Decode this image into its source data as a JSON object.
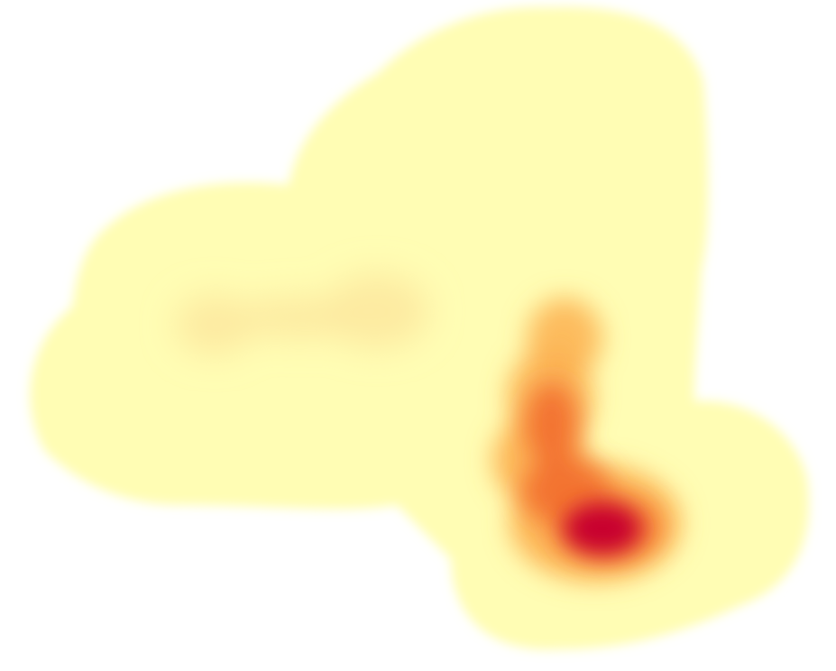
{
  "map": {
    "type": "density heatmap",
    "color_ramp": {
      "low": "#fffdb4",
      "mid_low": "#fde9a0",
      "mid": "#fdb050",
      "mid_high": "#f26d2e",
      "high": "#c8002e"
    },
    "background": "#ffffff"
  }
}
